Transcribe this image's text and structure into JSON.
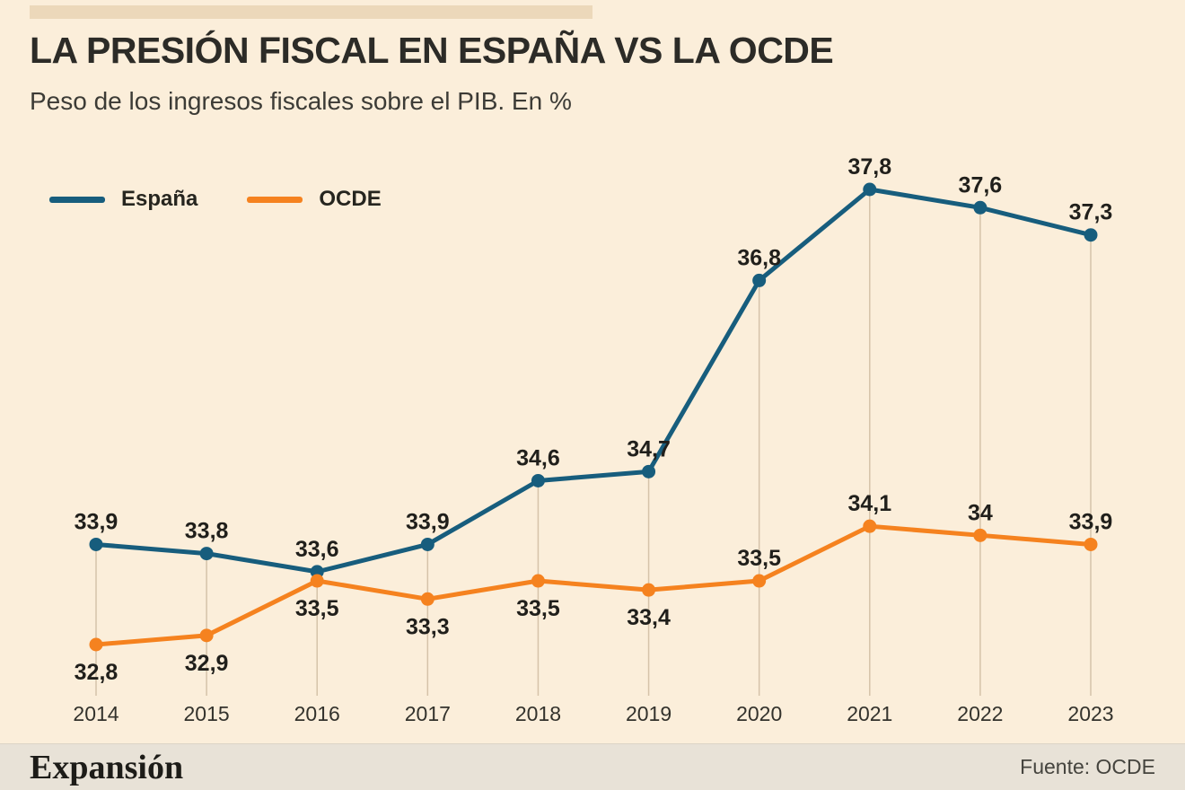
{
  "header": {
    "title": "LA PRESIÓN FISCAL EN ESPAÑA VS LA OCDE",
    "subtitle": "Peso de los ingresos fiscales sobre el PIB. En %"
  },
  "legend": [
    {
      "label": "España",
      "color": "#175d7d"
    },
    {
      "label": "OCDE",
      "color": "#f5821f"
    }
  ],
  "chart_data": {
    "type": "line",
    "title": "LA PRESIÓN FISCAL EN ESPAÑA VS LA OCDE",
    "subtitle": "Peso de los ingresos fiscales sobre el PIB. En %",
    "xlabel": "",
    "ylabel": "Peso de los ingresos fiscales sobre el PIB (%)",
    "x": [
      "2014",
      "2015",
      "2016",
      "2017",
      "2018",
      "2019",
      "2020",
      "2021",
      "2022",
      "2023"
    ],
    "series": [
      {
        "name": "España",
        "color": "#175d7d",
        "values": [
          33.9,
          33.8,
          33.6,
          33.9,
          34.6,
          34.7,
          36.8,
          37.8,
          37.6,
          37.3
        ],
        "labels": [
          "33,9",
          "33,8",
          "33,6",
          "33,9",
          "34,6",
          "34,7",
          "36,8",
          "37,8",
          "37,6",
          "37,3"
        ],
        "label_pos": [
          "above",
          "above",
          "above",
          "above",
          "above",
          "above",
          "above",
          "above",
          "above",
          "above"
        ]
      },
      {
        "name": "OCDE",
        "color": "#f5821f",
        "values": [
          32.8,
          32.9,
          33.5,
          33.3,
          33.5,
          33.4,
          33.5,
          34.1,
          34,
          33.9
        ],
        "labels": [
          "32,8",
          "32,9",
          "33,5",
          "33,3",
          "33,5",
          "33,4",
          "33,5",
          "34,1",
          "34",
          "33,9"
        ],
        "label_pos": [
          "below",
          "below",
          "below",
          "below",
          "below",
          "below",
          "above",
          "above",
          "above",
          "above"
        ]
      }
    ],
    "ylim": [
      32.3,
      38.3
    ],
    "grid": "vertical line per data point, no horizontal gridlines, no y-axis",
    "legend_position": "top-left"
  },
  "footer": {
    "brand": "Expansión",
    "source": "Fuente: OCDE"
  }
}
